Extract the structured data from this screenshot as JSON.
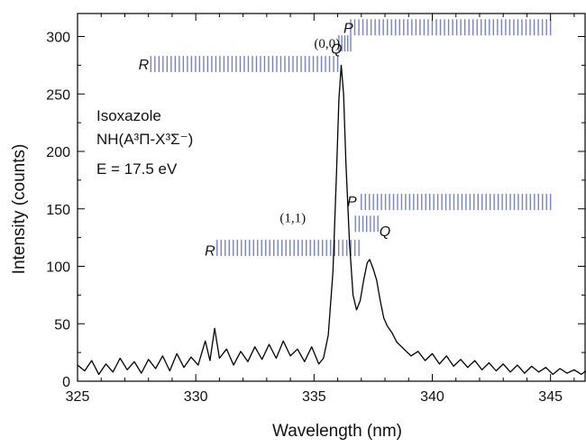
{
  "chart_data": {
    "type": "line",
    "xlabel": "Wavelength (nm)",
    "ylabel": "Intensity (counts)",
    "xlim": [
      325,
      346.5
    ],
    "ylim": [
      0,
      320
    ],
    "x_ticks": [
      325,
      330,
      335,
      340,
      345
    ],
    "y_ticks": [
      0,
      50,
      100,
      150,
      200,
      250,
      300
    ],
    "grid": false,
    "legend": "none",
    "series": [
      {
        "color": "#000000",
        "points": [
          [
            325.0,
            14
          ],
          [
            325.3,
            9
          ],
          [
            325.6,
            18
          ],
          [
            325.9,
            6
          ],
          [
            326.2,
            15
          ],
          [
            326.5,
            8
          ],
          [
            326.8,
            20
          ],
          [
            327.1,
            10
          ],
          [
            327.4,
            17
          ],
          [
            327.7,
            7
          ],
          [
            328.0,
            19
          ],
          [
            328.3,
            11
          ],
          [
            328.6,
            22
          ],
          [
            328.9,
            9
          ],
          [
            329.2,
            24
          ],
          [
            329.5,
            12
          ],
          [
            329.8,
            21
          ],
          [
            330.1,
            14
          ],
          [
            330.4,
            35
          ],
          [
            330.6,
            18
          ],
          [
            330.8,
            46
          ],
          [
            331.0,
            20
          ],
          [
            331.3,
            28
          ],
          [
            331.6,
            14
          ],
          [
            331.9,
            26
          ],
          [
            332.2,
            17
          ],
          [
            332.5,
            30
          ],
          [
            332.8,
            19
          ],
          [
            333.1,
            32
          ],
          [
            333.4,
            20
          ],
          [
            333.7,
            35
          ],
          [
            334.0,
            22
          ],
          [
            334.3,
            28
          ],
          [
            334.6,
            17
          ],
          [
            334.9,
            30
          ],
          [
            335.2,
            15
          ],
          [
            335.4,
            20
          ],
          [
            335.6,
            40
          ],
          [
            335.8,
            95
          ],
          [
            335.95,
            180
          ],
          [
            336.05,
            245
          ],
          [
            336.15,
            275
          ],
          [
            336.25,
            250
          ],
          [
            336.35,
            190
          ],
          [
            336.5,
            120
          ],
          [
            336.65,
            75
          ],
          [
            336.8,
            62
          ],
          [
            336.95,
            70
          ],
          [
            337.1,
            88
          ],
          [
            337.25,
            103
          ],
          [
            337.35,
            106
          ],
          [
            337.5,
            98
          ],
          [
            337.65,
            88
          ],
          [
            337.8,
            70
          ],
          [
            337.95,
            55
          ],
          [
            338.1,
            48
          ],
          [
            338.3,
            42
          ],
          [
            338.5,
            34
          ],
          [
            338.8,
            28
          ],
          [
            339.1,
            22
          ],
          [
            339.4,
            26
          ],
          [
            339.7,
            18
          ],
          [
            340.0,
            24
          ],
          [
            340.3,
            15
          ],
          [
            340.6,
            22
          ],
          [
            340.9,
            13
          ],
          [
            341.2,
            19
          ],
          [
            341.5,
            12
          ],
          [
            341.8,
            18
          ],
          [
            342.1,
            10
          ],
          [
            342.4,
            16
          ],
          [
            342.7,
            9
          ],
          [
            343.0,
            15
          ],
          [
            343.3,
            8
          ],
          [
            343.6,
            14
          ],
          [
            343.9,
            7
          ],
          [
            344.2,
            13
          ],
          [
            344.5,
            8
          ],
          [
            344.8,
            12
          ],
          [
            345.1,
            6
          ],
          [
            345.4,
            11
          ],
          [
            345.7,
            7
          ],
          [
            346.0,
            10
          ],
          [
            346.3,
            6
          ],
          [
            346.5,
            9
          ]
        ]
      }
    ],
    "annotations": {
      "molecule": "Isoxazole",
      "transition": "NH(A³Π-X³Σ⁻)",
      "energy": "E = 17.5 eV"
    },
    "branch_labels": [
      {
        "text": "P",
        "x": 336.45,
        "y": 308
      },
      {
        "text": "Q",
        "x": 335.95,
        "y": 290
      },
      {
        "text": "R",
        "x": 327.8,
        "y": 276
      },
      {
        "text": "(0,0)",
        "x": 335.55,
        "y": 295
      },
      {
        "text": "P",
        "x": 336.6,
        "y": 157
      },
      {
        "text": "Q",
        "x": 338.0,
        "y": 131
      },
      {
        "text": "R",
        "x": 330.6,
        "y": 114
      },
      {
        "text": "(1,1)",
        "x": 334.1,
        "y": 143
      }
    ],
    "branch_bars": [
      {
        "branch": "P",
        "band": "(0,0)",
        "x_start": 336.55,
        "x_end": 345.0,
        "y": 308
      },
      {
        "branch": "Q",
        "band": "(0,0)",
        "x_start": 336.05,
        "x_end": 336.55,
        "y": 294
      },
      {
        "branch": "R",
        "band": "(0,0)",
        "x_start": 328.1,
        "x_end": 336.0,
        "y": 276
      },
      {
        "branch": "P",
        "band": "(1,1)",
        "x_start": 337.0,
        "x_end": 345.0,
        "y": 156
      },
      {
        "branch": "Q",
        "band": "(1,1)",
        "x_start": 336.75,
        "x_end": 337.7,
        "y": 137
      },
      {
        "branch": "R",
        "band": "(1,1)",
        "x_start": 330.9,
        "x_end": 336.9,
        "y": 116
      }
    ]
  }
}
